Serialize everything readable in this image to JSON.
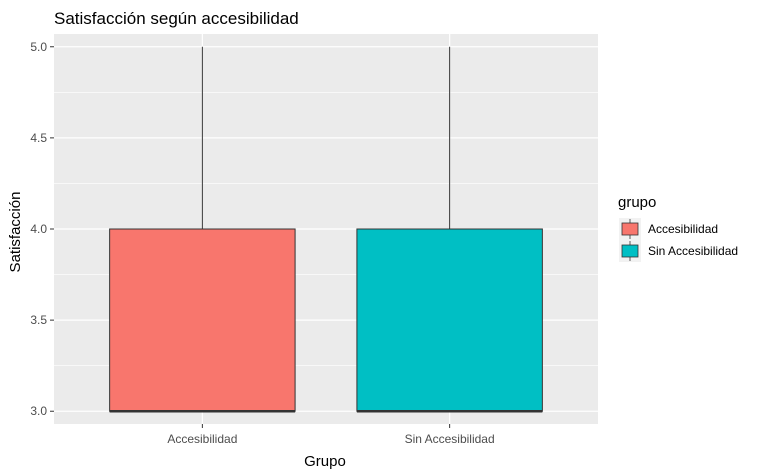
{
  "chart_data": {
    "type": "boxplot",
    "title": "Satisfacción según accesibilidad",
    "xlabel": "Grupo",
    "ylabel": "Satisfacción",
    "categories": [
      "Accesibilidad",
      "Sin Accesibilidad"
    ],
    "ylim": [
      2.93,
      5.07
    ],
    "yticks": [
      "3.0",
      "3.5",
      "4.0",
      "4.5",
      "5.0"
    ],
    "grid": true,
    "legend": {
      "title": "grupo",
      "placement": "right",
      "entries": [
        "Accesibilidad",
        "Sin Accesibilidad"
      ]
    },
    "series": [
      {
        "name": "Accesibilidad",
        "min": 3.0,
        "q1": 3.0,
        "median": 3.0,
        "q3": 4.0,
        "max": 5.0,
        "color": "#F8766D"
      },
      {
        "name": "Sin Accesibilidad",
        "min": 3.0,
        "q1": 3.0,
        "median": 3.0,
        "q3": 4.0,
        "max": 5.0,
        "color": "#00BFC4"
      }
    ],
    "panel_background": "#EBEBEB",
    "grid_color": "#FFFFFF"
  }
}
